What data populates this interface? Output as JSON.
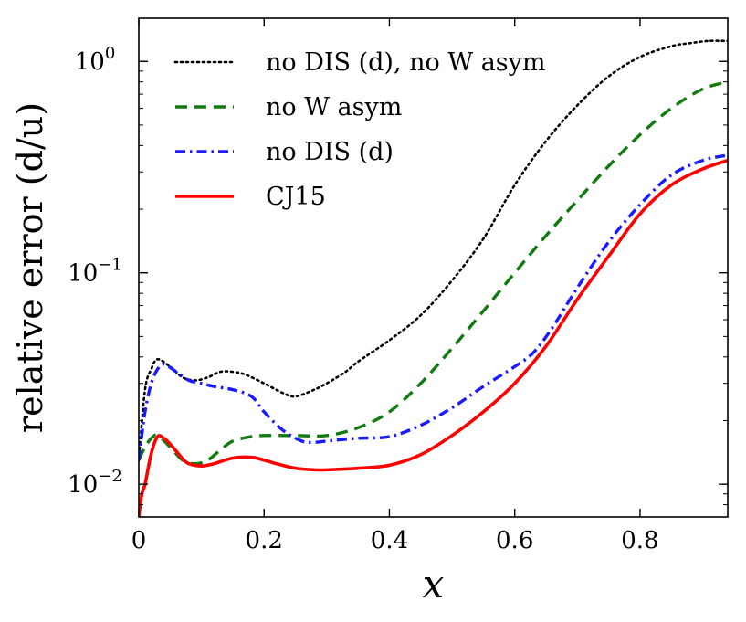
{
  "chart_data": {
    "type": "line",
    "title": "",
    "xlabel": "x",
    "ylabel": "relative error (d/u)",
    "yscale": "log",
    "xlim": [
      0,
      0.94
    ],
    "ylim": [
      0.007,
      1.6
    ],
    "grid": false,
    "legend_position": "top-right",
    "xticks": [
      {
        "value": 0,
        "label": "0"
      },
      {
        "value": 0.2,
        "label": "0.2"
      },
      {
        "value": 0.4,
        "label": "0.4"
      },
      {
        "value": 0.6,
        "label": "0.6"
      },
      {
        "value": 0.8,
        "label": "0.8"
      }
    ],
    "yticks": [
      {
        "value": 0.01,
        "base": "10",
        "exp": "−2"
      },
      {
        "value": 0.1,
        "base": "10",
        "exp": "−1"
      },
      {
        "value": 1,
        "base": "10",
        "exp": "0"
      }
    ],
    "series": [
      {
        "name": "no DIS (d), no W asym",
        "legend_label": "no DIS (d),  no W asym",
        "color": "#000000",
        "style": "dotted",
        "x": [
          0.0,
          0.01,
          0.02,
          0.03,
          0.05,
          0.07,
          0.09,
          0.11,
          0.13,
          0.15,
          0.17,
          0.2,
          0.23,
          0.25,
          0.28,
          0.3,
          0.33,
          0.35,
          0.4,
          0.45,
          0.5,
          0.55,
          0.6,
          0.65,
          0.7,
          0.75,
          0.8,
          0.85,
          0.88,
          0.91,
          0.94
        ],
        "y": [
          0.013,
          0.028,
          0.035,
          0.039,
          0.036,
          0.032,
          0.031,
          0.032,
          0.034,
          0.034,
          0.033,
          0.03,
          0.027,
          0.026,
          0.028,
          0.03,
          0.034,
          0.038,
          0.048,
          0.063,
          0.092,
          0.145,
          0.26,
          0.42,
          0.62,
          0.85,
          1.05,
          1.18,
          1.22,
          1.25,
          1.25
        ]
      },
      {
        "name": "no W asym",
        "legend_label": "no W asym",
        "color": "#117a11",
        "style": "dashed",
        "x": [
          0.0,
          0.01,
          0.02,
          0.03,
          0.05,
          0.07,
          0.09,
          0.11,
          0.13,
          0.15,
          0.18,
          0.2,
          0.25,
          0.3,
          0.35,
          0.4,
          0.45,
          0.5,
          0.55,
          0.6,
          0.65,
          0.7,
          0.75,
          0.8,
          0.85,
          0.9,
          0.94
        ],
        "y": [
          0.013,
          0.015,
          0.0165,
          0.017,
          0.015,
          0.013,
          0.0125,
          0.013,
          0.0145,
          0.016,
          0.0168,
          0.017,
          0.017,
          0.017,
          0.0185,
          0.022,
          0.03,
          0.044,
          0.066,
          0.1,
          0.15,
          0.22,
          0.32,
          0.45,
          0.6,
          0.74,
          0.8
        ]
      },
      {
        "name": "no DIS (d)",
        "legend_label": "no DIS (d)",
        "color": "#1a1aff",
        "style": "dashdot",
        "x": [
          0.0,
          0.01,
          0.02,
          0.03,
          0.04,
          0.06,
          0.08,
          0.1,
          0.12,
          0.15,
          0.18,
          0.2,
          0.23,
          0.26,
          0.28,
          0.3,
          0.35,
          0.4,
          0.45,
          0.5,
          0.55,
          0.6,
          0.63,
          0.66,
          0.7,
          0.75,
          0.8,
          0.85,
          0.9,
          0.94
        ],
        "y": [
          0.013,
          0.022,
          0.03,
          0.035,
          0.037,
          0.034,
          0.031,
          0.03,
          0.029,
          0.028,
          0.026,
          0.022,
          0.018,
          0.016,
          0.0158,
          0.016,
          0.0165,
          0.0168,
          0.019,
          0.023,
          0.029,
          0.036,
          0.042,
          0.055,
          0.085,
          0.14,
          0.21,
          0.29,
          0.34,
          0.36
        ]
      },
      {
        "name": "CJ15",
        "legend_label": "CJ15",
        "color": "#ff0000",
        "style": "solid",
        "x": [
          0.0,
          0.005,
          0.01,
          0.02,
          0.03,
          0.04,
          0.05,
          0.06,
          0.07,
          0.08,
          0.1,
          0.12,
          0.15,
          0.18,
          0.2,
          0.22,
          0.25,
          0.28,
          0.3,
          0.35,
          0.4,
          0.45,
          0.5,
          0.55,
          0.6,
          0.65,
          0.7,
          0.75,
          0.8,
          0.85,
          0.9,
          0.94
        ],
        "y": [
          0.007,
          0.009,
          0.01,
          0.014,
          0.0168,
          0.0165,
          0.0155,
          0.0143,
          0.0132,
          0.0125,
          0.0122,
          0.0125,
          0.0133,
          0.0134,
          0.013,
          0.0125,
          0.0119,
          0.0117,
          0.0117,
          0.0119,
          0.0123,
          0.0138,
          0.017,
          0.022,
          0.03,
          0.045,
          0.075,
          0.12,
          0.19,
          0.26,
          0.31,
          0.34
        ]
      }
    ]
  }
}
